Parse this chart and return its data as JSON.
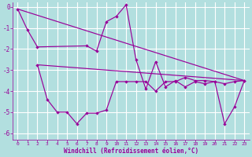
{
  "background_color": "#b2dfdf",
  "grid_color": "#ffffff",
  "line_color": "#990099",
  "xlabel": "Windchill (Refroidissement éolien,°C)",
  "xlabel_color": "#990099",
  "tick_color": "#990099",
  "ylim": [
    -6.3,
    0.2
  ],
  "xlim": [
    -0.5,
    23.5
  ],
  "yticks": [
    0,
    -1,
    -2,
    -3,
    -4,
    -5,
    -6
  ],
  "xticks": [
    0,
    1,
    2,
    3,
    4,
    5,
    6,
    7,
    8,
    9,
    10,
    11,
    12,
    13,
    14,
    15,
    16,
    17,
    18,
    19,
    20,
    21,
    22,
    23
  ],
  "line1_x": [
    0,
    1,
    2,
    7,
    8,
    9,
    10,
    11,
    12,
    13,
    14,
    15,
    16,
    17,
    18,
    19,
    20,
    21,
    22,
    23
  ],
  "line1_y": [
    -0.1,
    -1.1,
    -1.9,
    -1.85,
    -2.1,
    -0.7,
    -0.45,
    0.1,
    -2.5,
    -3.9,
    -2.6,
    -3.8,
    -3.5,
    -3.8,
    -3.55,
    -3.65,
    -3.55,
    -3.65,
    -3.55,
    -3.5
  ],
  "line2_x": [
    2,
    3,
    4,
    5,
    6,
    7,
    8,
    9,
    10,
    11,
    12,
    13,
    14,
    15,
    16,
    17,
    18,
    19,
    20,
    21,
    22,
    23
  ],
  "line2_y": [
    -2.75,
    -4.4,
    -5.0,
    -5.0,
    -5.55,
    -5.05,
    -5.05,
    -4.9,
    -3.55,
    -3.55,
    -3.55,
    -3.55,
    -4.0,
    -3.55,
    -3.55,
    -3.35,
    -3.5,
    -3.5,
    -3.55,
    -5.55,
    -4.75,
    -3.5
  ],
  "trend1_x": [
    0,
    23
  ],
  "trend1_y": [
    -0.1,
    -3.5
  ],
  "trend2_x": [
    2,
    23
  ],
  "trend2_y": [
    -2.75,
    -3.5
  ]
}
